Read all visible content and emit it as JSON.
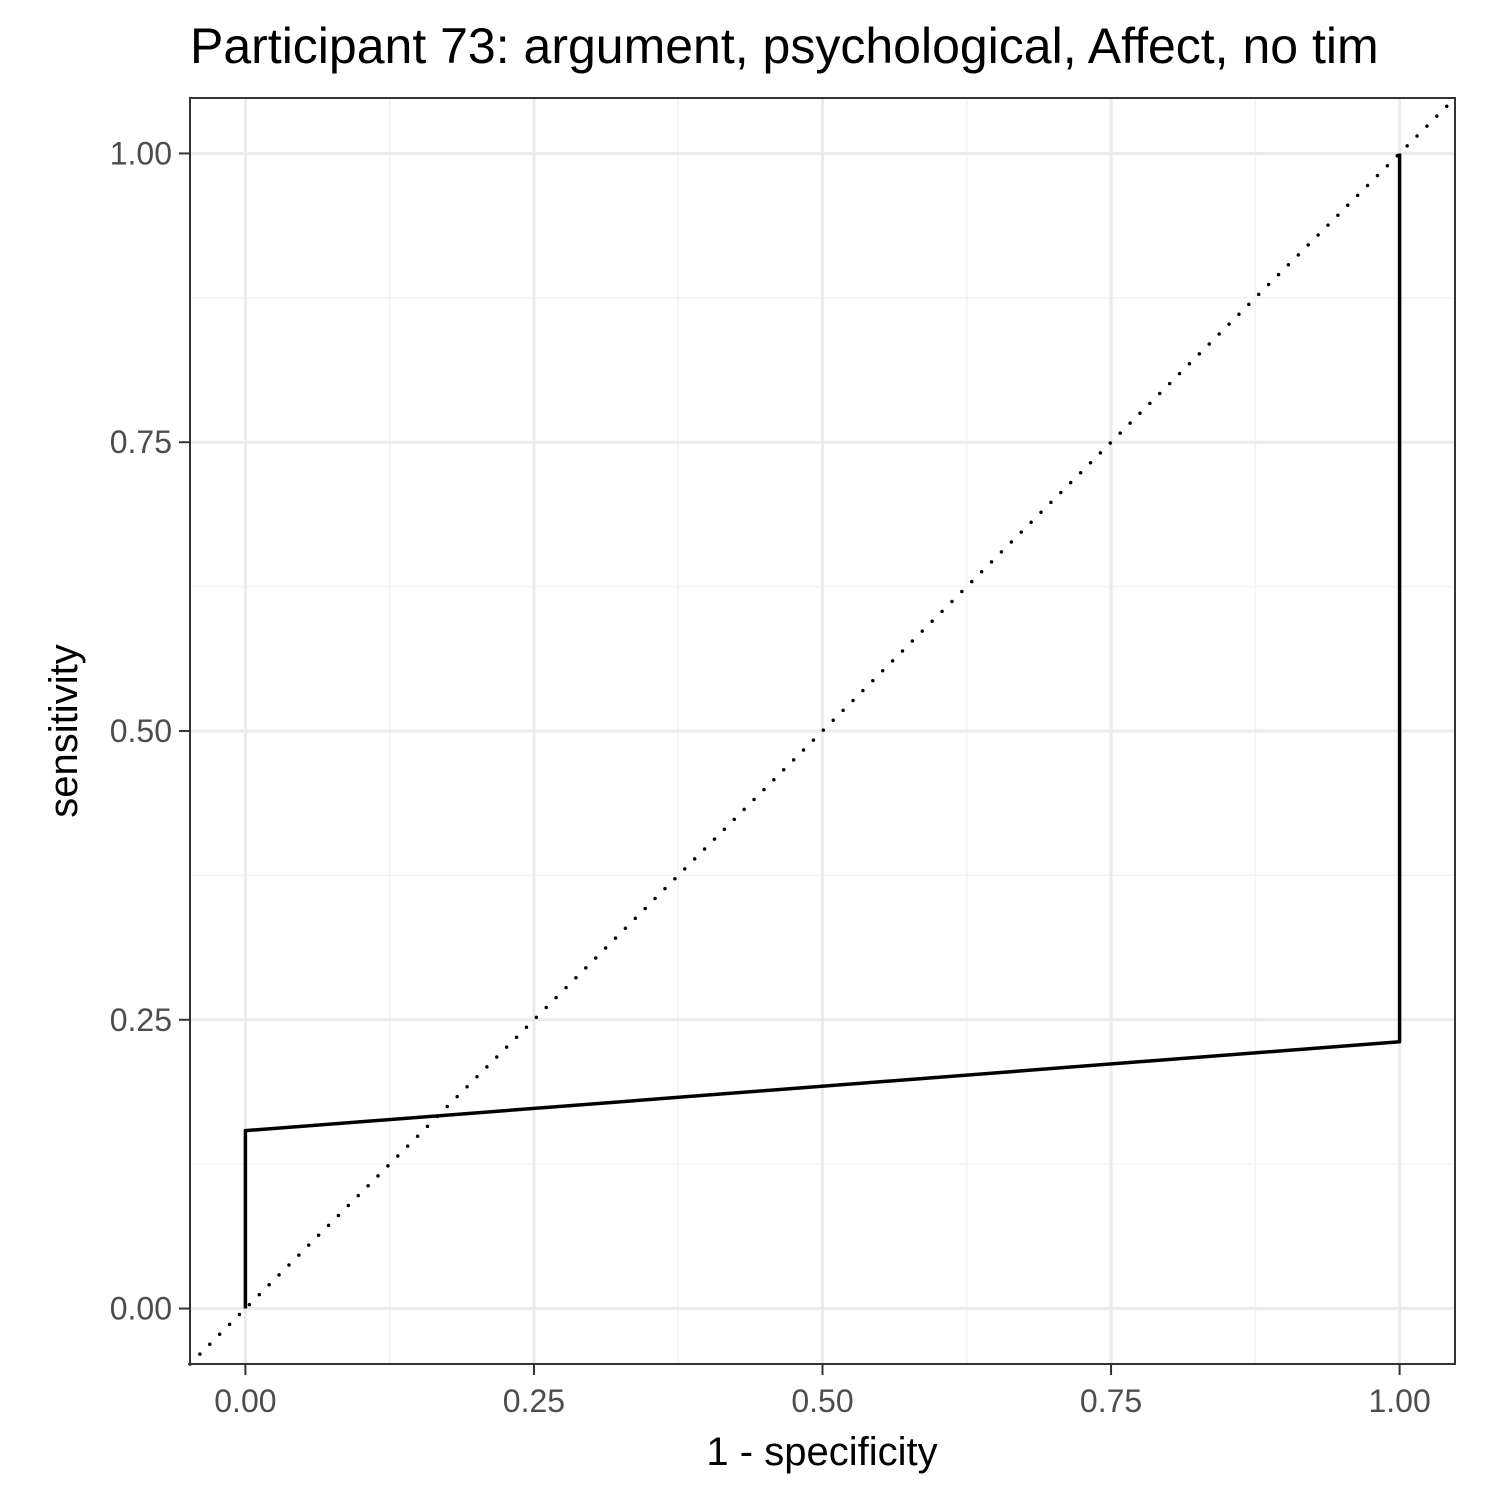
{
  "chart_data": {
    "type": "line",
    "title": "Participant 73: argument, psychological, Affect, no tim",
    "xlabel": "1 - specificity",
    "ylabel": "sensitivity",
    "xlim": [
      -0.048,
      1.048
    ],
    "ylim": [
      -0.048,
      1.048
    ],
    "x_ticks": [
      0,
      0.25,
      0.5,
      0.75,
      1
    ],
    "y_ticks": [
      0,
      0.25,
      0.5,
      0.75,
      1
    ],
    "x_tick_labels": [
      "0.00",
      "0.25",
      "0.50",
      "0.75",
      "1.00"
    ],
    "y_tick_labels": [
      "0.00",
      "0.25",
      "0.50",
      "0.75",
      "1.00"
    ],
    "grid": true,
    "series": [
      {
        "style": "solid",
        "color": "#000000",
        "points": [
          {
            "x": 0,
            "y": 0
          },
          {
            "x": 0,
            "y": 0.154
          },
          {
            "x": 1,
            "y": 0.231
          },
          {
            "x": 1,
            "y": 1
          }
        ]
      }
    ],
    "reference_line": {
      "style": "dotted",
      "color": "#000000",
      "points": [
        {
          "x": -0.048,
          "y": -0.048
        },
        {
          "x": 1.048,
          "y": 1.048
        }
      ]
    },
    "colors": {
      "panel_border": "#333333",
      "grid_major": "#ebebeb",
      "grid_minor": "#f2f2f2",
      "tick_text": "#4d4d4d"
    }
  }
}
